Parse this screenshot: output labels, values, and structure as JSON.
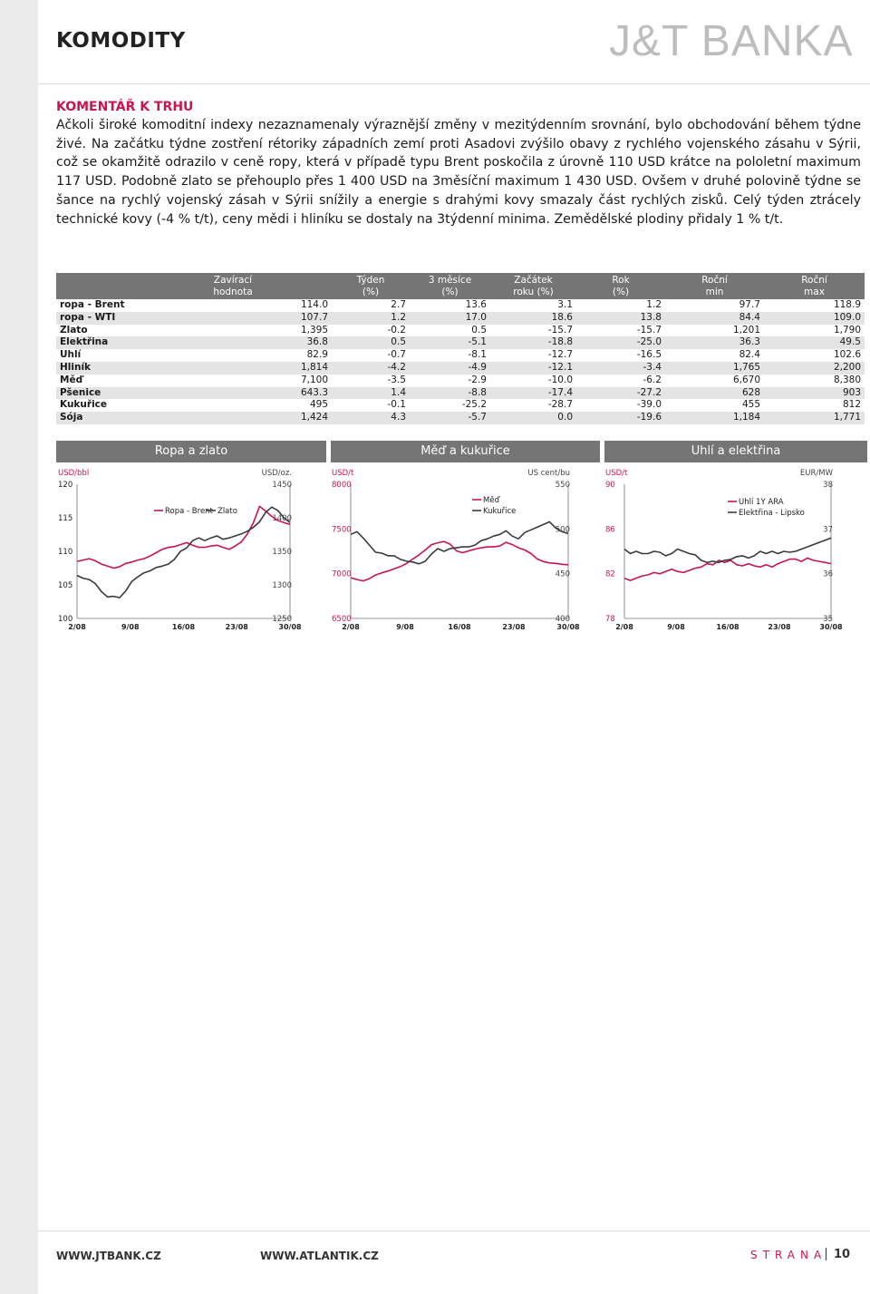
{
  "header": {
    "title": "KOMODITY",
    "logo": "J&T BANKA"
  },
  "comment": {
    "heading": "KOMENTÁŘ K TRHU",
    "text": "Ačkoli široké komoditní indexy nezaznamenaly výraznější změny v mezitýdenním srovnání, bylo obchodování během týdne živé. Na začátku týdne zostření rétoriky západních zemí proti Asadovi zvýšilo obavy z rychlého vojenského zásahu v Sýrii, což se okamžitě odrazilo v ceně ropy, která v případě typu Brent poskočila z úrovně 110 USD krátce na pololetní maximum 117 USD. Podobně zlato se přehouplo přes 1 400 USD na 3měsíční maximum 1 430 USD. Ovšem v druhé polovině týdne se šance na rychlý vojenský zásah v Sýrii snížily a energie s drahými kovy smazaly část rychlých zisků. Celý týden ztrácely technické kovy (-4 % t/t), ceny mědi i hliníku se dostaly na 3týdenní minima. Zemědělské plodiny přidaly 1 % t/t."
  },
  "table": {
    "headers": [
      [
        "",
        ""
      ],
      [
        "Zavírací",
        "hodnota"
      ],
      [
        "Týden",
        "(%)"
      ],
      [
        "3 měsíce",
        "(%)"
      ],
      [
        "Začátek",
        "roku (%)"
      ],
      [
        "Rok",
        "(%)"
      ],
      [
        "Roční",
        "min"
      ],
      [
        "Roční",
        "max"
      ]
    ],
    "rows": [
      [
        "ropa - Brent",
        "114.0",
        "2.7",
        "13.6",
        "3.1",
        "1.2",
        "97.7",
        "118.9"
      ],
      [
        "ropa - WTI",
        "107.7",
        "1.2",
        "17.0",
        "18.6",
        "13.8",
        "84.4",
        "109.0"
      ],
      [
        "Zlato",
        "1,395",
        "-0.2",
        "0.5",
        "-15.7",
        "-15.7",
        "1,201",
        "1,790"
      ],
      [
        "Elektřina",
        "36.8",
        "0.5",
        "-5.1",
        "-18.8",
        "-25.0",
        "36.3",
        "49.5"
      ],
      [
        "Uhlí",
        "82.9",
        "-0.7",
        "-8.1",
        "-12.7",
        "-16.5",
        "82.4",
        "102.6"
      ],
      [
        "Hliník",
        "1,814",
        "-4.2",
        "-4.9",
        "-12.1",
        "-3.4",
        "1,765",
        "2,200"
      ],
      [
        "Měď",
        "7,100",
        "-3.5",
        "-2.9",
        "-10.0",
        "-6.2",
        "6,670",
        "8,380"
      ],
      [
        "Pšenice",
        "643.3",
        "1.4",
        "-8.8",
        "-17.4",
        "-27.2",
        "628",
        "903"
      ],
      [
        "Kukuřice",
        "495",
        "-0.1",
        "-25.2",
        "-28.7",
        "-39.0",
        "455",
        "812"
      ],
      [
        "Sója",
        "1,424",
        "4.3",
        "-5.7",
        "0.0",
        "-19.6",
        "1,184",
        "1,771"
      ]
    ]
  },
  "colors": {
    "accent": "#c8154b",
    "grey": "#757575"
  },
  "chart_data": [
    {
      "type": "line",
      "title": "Ropa a zlato",
      "x_ticks": [
        "2/08",
        "9/08",
        "16/08",
        "23/08",
        "30/08"
      ],
      "left_axis": {
        "unit": "USD/bbl",
        "ylim": [
          100,
          120
        ],
        "ticks": [
          "120",
          "115",
          "110",
          "105",
          "100"
        ]
      },
      "right_axis": {
        "unit": "USD/oz.",
        "ylim": [
          1250,
          1450
        ],
        "ticks": [
          "1450",
          "1400",
          "1350",
          "1300",
          "1250"
        ]
      },
      "series": [
        {
          "name": "Ropa - Brent",
          "axis": "left",
          "color": "#c8154b",
          "values": [
            108.5,
            108.7,
            108.9,
            108.6,
            108.1,
            107.8,
            107.5,
            107.7,
            108.2,
            108.4,
            108.7,
            108.9,
            109.3,
            109.8,
            110.3,
            110.6,
            110.7,
            111.0,
            111.3,
            110.9,
            110.6,
            110.6,
            110.8,
            110.9,
            110.6,
            110.3,
            110.8,
            111.4,
            112.6,
            114.3,
            116.7,
            116.0,
            115.2,
            114.6,
            114.3,
            114.0
          ]
        },
        {
          "name": "Zlato",
          "axis": "right",
          "color": "#3a3a3a",
          "values": [
            1314,
            1310,
            1308,
            1302,
            1290,
            1282,
            1283,
            1281,
            1291,
            1305,
            1312,
            1318,
            1321,
            1326,
            1328,
            1331,
            1338,
            1350,
            1355,
            1366,
            1370,
            1366,
            1370,
            1373,
            1368,
            1370,
            1373,
            1376,
            1380,
            1386,
            1394,
            1408,
            1416,
            1411,
            1400,
            1393
          ]
        }
      ]
    },
    {
      "type": "line",
      "title": "Měď a kukuřice",
      "x_ticks": [
        "2/08",
        "9/08",
        "16/08",
        "23/08",
        "30/08"
      ],
      "left_axis": {
        "unit": "USD/t",
        "ylim": [
          6500,
          8000
        ],
        "ticks": [
          "8000",
          "7500",
          "7000",
          "6500"
        ]
      },
      "right_axis": {
        "unit": "US cent/bu",
        "ylim": [
          400,
          550
        ],
        "ticks": [
          "550",
          "500",
          "450",
          "400"
        ]
      },
      "series": [
        {
          "name": "Měď",
          "axis": "left",
          "color": "#c8154b",
          "values": [
            6955,
            6935,
            6920,
            6945,
            6985,
            7010,
            7030,
            7055,
            7080,
            7115,
            7165,
            7210,
            7265,
            7325,
            7345,
            7360,
            7330,
            7255,
            7235,
            7255,
            7275,
            7290,
            7300,
            7300,
            7310,
            7350,
            7325,
            7290,
            7265,
            7225,
            7165,
            7135,
            7120,
            7115,
            7105,
            7100
          ]
        },
        {
          "name": "Kukuřice",
          "axis": "right",
          "color": "#3a3a3a",
          "values": [
            494,
            497,
            490,
            482,
            474,
            473,
            470,
            470,
            466,
            464,
            463,
            461,
            464,
            472,
            478,
            475,
            478,
            479,
            480,
            480,
            482,
            487,
            489,
            492,
            494,
            498,
            492,
            489,
            496,
            499,
            502,
            505,
            508,
            501,
            497,
            495
          ]
        }
      ]
    },
    {
      "type": "line",
      "title": "Uhlí a elektřina",
      "x_ticks": [
        "2/08",
        "9/08",
        "16/08",
        "23/08",
        "30/08"
      ],
      "left_axis": {
        "unit": "USD/t",
        "ylim": [
          78,
          90
        ],
        "ticks": [
          "90",
          "86",
          "82",
          "78"
        ]
      },
      "right_axis": {
        "unit": "EUR/MW",
        "ylim": [
          35,
          38
        ],
        "ticks": [
          "38",
          "37",
          "36",
          "35"
        ]
      },
      "series": [
        {
          "name": "Uhlí 1Y ARA",
          "axis": "left",
          "color": "#c8154b",
          "values": [
            81.6,
            81.4,
            81.6,
            81.8,
            81.9,
            82.1,
            82.0,
            82.2,
            82.4,
            82.2,
            82.1,
            82.3,
            82.5,
            82.6,
            82.9,
            82.8,
            83.2,
            83.0,
            83.2,
            82.8,
            82.7,
            82.9,
            82.7,
            82.6,
            82.8,
            82.6,
            82.9,
            83.1,
            83.3,
            83.3,
            83.1,
            83.4,
            83.2,
            83.1,
            83.0,
            82.9
          ]
        },
        {
          "name": "Elektřina - Lipsko",
          "axis": "right",
          "color": "#3a3a3a",
          "values": [
            36.55,
            36.45,
            36.5,
            36.45,
            36.45,
            36.5,
            36.48,
            36.4,
            36.45,
            36.55,
            36.5,
            36.45,
            36.42,
            36.3,
            36.25,
            36.28,
            36.25,
            36.3,
            36.32,
            36.38,
            36.4,
            36.35,
            36.4,
            36.5,
            36.45,
            36.5,
            36.45,
            36.5,
            36.48,
            36.5,
            36.55,
            36.6,
            36.65,
            36.7,
            36.75,
            36.8
          ]
        }
      ]
    }
  ],
  "footer": {
    "link1": "WWW.JTBANK.CZ",
    "link2": "WWW.ATLANTIK.CZ",
    "strana": "STRANA",
    "page": "10"
  }
}
